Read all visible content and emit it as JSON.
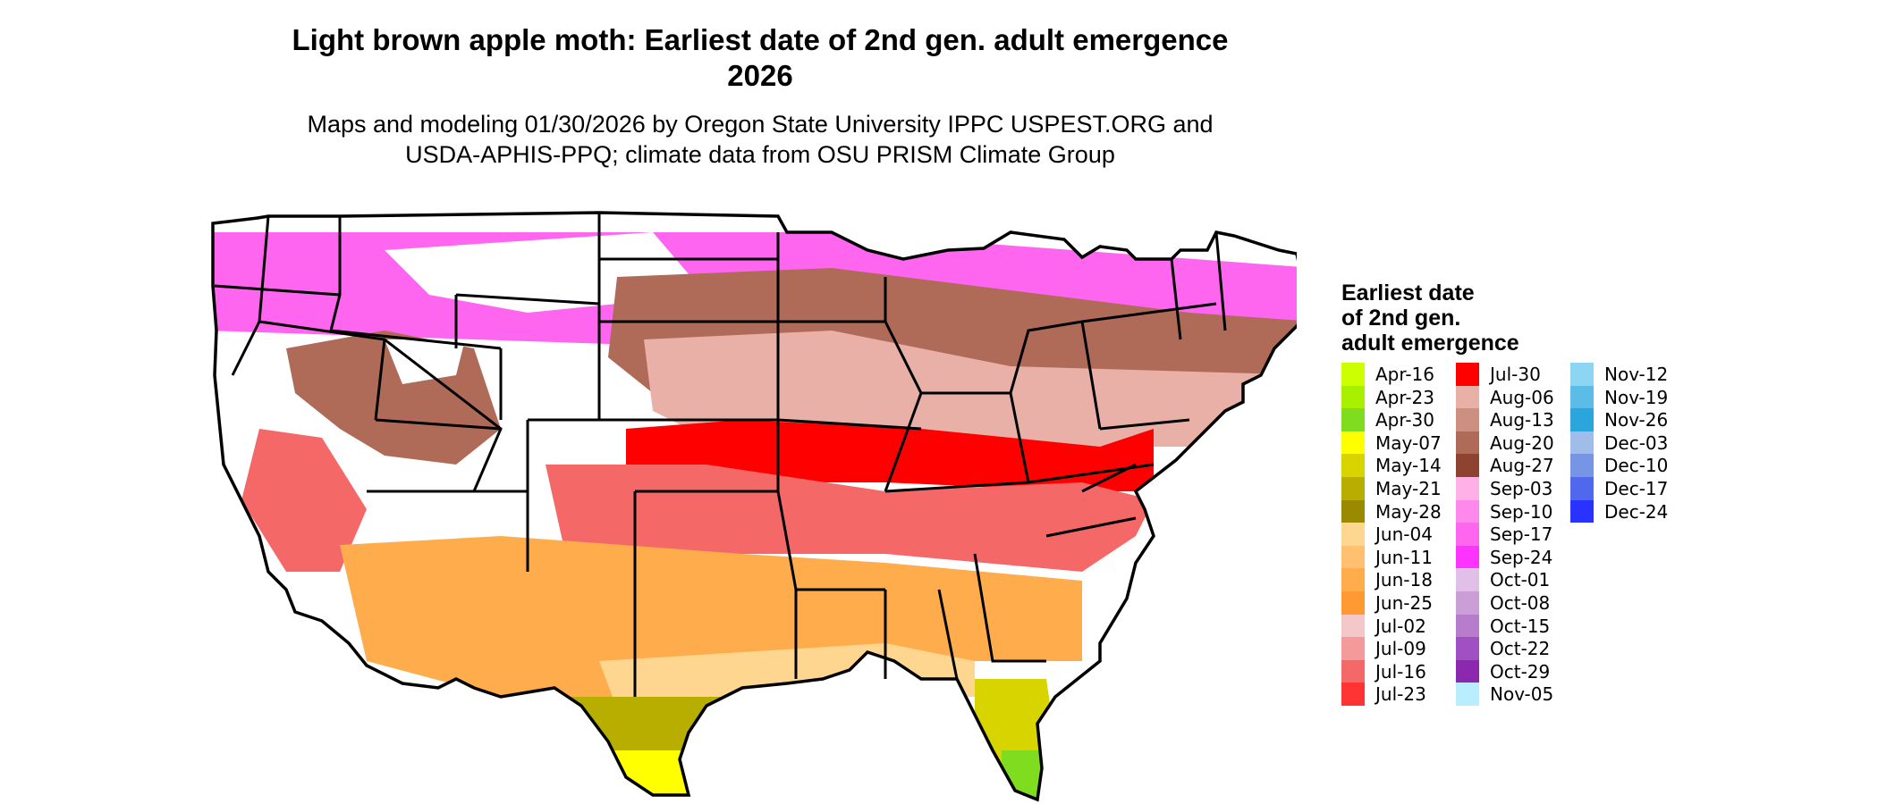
{
  "title": {
    "line1": "Light brown apple moth: Earliest date of 2nd gen. adult emergence",
    "line2": "2026"
  },
  "subtitle": {
    "line1": "Maps and modeling 01/30/2026 by Oregon State University IPPC USPEST.ORG and",
    "line2": "USDA-APHIS-PPQ; climate data from OSU PRISM Climate Group"
  },
  "legend": {
    "title_lines": [
      "Earliest date",
      "of 2nd gen.",
      "adult emergence"
    ],
    "columns": [
      [
        {
          "label": "Apr-16",
          "color": "#ccff00"
        },
        {
          "label": "Apr-23",
          "color": "#a8f000"
        },
        {
          "label": "Apr-30",
          "color": "#80dc1e"
        },
        {
          "label": "May-07",
          "color": "#ffff00"
        },
        {
          "label": "May-14",
          "color": "#d8d400"
        },
        {
          "label": "May-21",
          "color": "#b8ae00"
        },
        {
          "label": "May-28",
          "color": "#9a8a00"
        },
        {
          "label": "Jun-04",
          "color": "#ffd690"
        },
        {
          "label": "Jun-11",
          "color": "#ffc070"
        },
        {
          "label": "Jun-18",
          "color": "#ffac4c"
        },
        {
          "label": "Jun-25",
          "color": "#ff9a33"
        },
        {
          "label": "Jul-02",
          "color": "#f4c8c8"
        },
        {
          "label": "Jul-09",
          "color": "#f49a9a"
        },
        {
          "label": "Jul-16",
          "color": "#f46868"
        },
        {
          "label": "Jul-23",
          "color": "#ff3333"
        }
      ],
      [
        {
          "label": "Jul-30",
          "color": "#ff0000"
        },
        {
          "label": "Aug-06",
          "color": "#e8b0a6"
        },
        {
          "label": "Aug-13",
          "color": "#cc8f80"
        },
        {
          "label": "Aug-20",
          "color": "#b06a58"
        },
        {
          "label": "Aug-27",
          "color": "#8e4230"
        },
        {
          "label": "Sep-03",
          "color": "#ffb0e6"
        },
        {
          "label": "Sep-10",
          "color": "#ff88ec"
        },
        {
          "label": "Sep-17",
          "color": "#ff66f0"
        },
        {
          "label": "Sep-24",
          "color": "#ff33ff"
        },
        {
          "label": "Oct-01",
          "color": "#e0c0e8"
        },
        {
          "label": "Oct-08",
          "color": "#cc9ed8"
        },
        {
          "label": "Oct-15",
          "color": "#b87ccc"
        },
        {
          "label": "Oct-22",
          "color": "#a050c0"
        },
        {
          "label": "Oct-29",
          "color": "#8c28b0"
        },
        {
          "label": "Nov-05",
          "color": "#b8eeff"
        }
      ],
      [
        {
          "label": "Nov-12",
          "color": "#8cd6f4"
        },
        {
          "label": "Nov-19",
          "color": "#5cbce8"
        },
        {
          "label": "Nov-26",
          "color": "#2aa6dc"
        },
        {
          "label": "Dec-03",
          "color": "#a0bce8"
        },
        {
          "label": "Dec-10",
          "color": "#7894e4"
        },
        {
          "label": "Dec-17",
          "color": "#5068ee"
        },
        {
          "label": "Dec-24",
          "color": "#2a32ff"
        }
      ]
    ]
  },
  "map_colors": {
    "outline": "#000000",
    "no_emergence": "#ffffff"
  }
}
